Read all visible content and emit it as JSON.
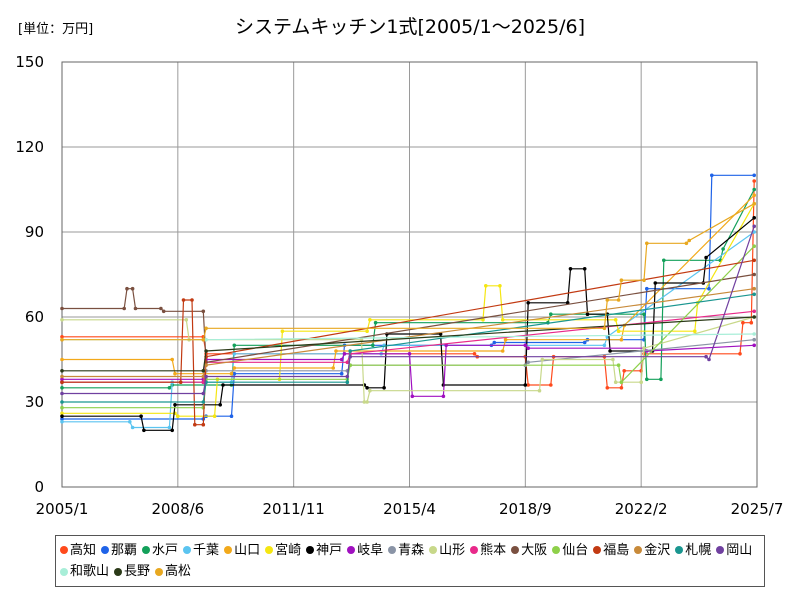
{
  "chart_data": {
    "type": "line",
    "unit_label": "[単位：万円]",
    "title": "システムキッチン1式[2005/1～2025/6]",
    "x_ticks": [
      "2005/1",
      "2008/6",
      "2011/11",
      "2015/4",
      "2018/9",
      "2022/2",
      "2025/7"
    ],
    "xlim": [
      "2005/1",
      "2025/7"
    ],
    "y_ticks": [
      0,
      30,
      60,
      90,
      120,
      150
    ],
    "ylim": [
      0,
      150
    ],
    "grid": true,
    "legend_position": "bottom",
    "series": [
      {
        "name": "高知",
        "color": "#ff4a1c",
        "x": [
          "2005/1",
          "2009/3",
          "2009/4",
          "2017/3",
          "2017/4",
          "2018/9",
          "2018/10",
          "2019/6",
          "2019/7",
          "2021/1",
          "2021/2",
          "2021/7",
          "2021/8",
          "2022/2",
          "2022/3",
          "2025/1",
          "2025/2",
          "2025/5",
          "2025/6"
        ],
        "y": [
          53,
          53,
          47,
          47,
          46,
          46,
          36,
          36,
          46,
          46,
          35,
          35,
          41,
          41,
          47,
          47,
          58,
          58,
          108
        ]
      },
      {
        "name": "那覇",
        "color": "#1f63e8",
        "x": [
          "2005/1",
          "2009/3",
          "2009/4",
          "2010/1",
          "2010/2",
          "2013/4",
          "2013/5",
          "2017/9",
          "2017/10",
          "2020/6",
          "2020/7",
          "2022/3",
          "2022/4",
          "2024/2",
          "2024/3",
          "2025/6"
        ],
        "y": [
          24,
          24,
          25,
          25,
          40,
          40,
          50,
          50,
          51,
          51,
          52,
          52,
          70,
          70,
          110,
          110
        ]
      },
      {
        "name": "水戸",
        "color": "#13a05a",
        "x": [
          "2005/1",
          "2008/3",
          "2008/4",
          "2010/1",
          "2010/2",
          "2014/3",
          "2014/4",
          "2019/5",
          "2019/6",
          "2022/3",
          "2022/4",
          "2022/9",
          "2022/10",
          "2024/6",
          "2024/7",
          "2025/6"
        ],
        "y": [
          35,
          35,
          36,
          36,
          50,
          50,
          58,
          58,
          61,
          61,
          38,
          38,
          80,
          80,
          84,
          105
        ]
      },
      {
        "name": "千葉",
        "color": "#5bc4f0",
        "x": [
          "2005/1",
          "2007/1",
          "2007/2",
          "2008/3",
          "2008/4",
          "2010/1",
          "2010/2",
          "2014/6",
          "2014/7",
          "2021/1",
          "2021/2",
          "2025/6"
        ],
        "y": [
          23,
          23,
          21,
          21,
          37,
          37,
          47,
          47,
          50,
          50,
          53,
          90
        ]
      },
      {
        "name": "山口",
        "color": "#f2a91b",
        "x": [
          "2005/1",
          "2008/4",
          "2008/5",
          "2010/1",
          "2010/2",
          "2013/1",
          "2013/2",
          "2018/1",
          "2018/2",
          "2021/7",
          "2021/8",
          "2025/6"
        ],
        "y": [
          45,
          45,
          40,
          40,
          42,
          42,
          48,
          48,
          52,
          52,
          57,
          103
        ]
      },
      {
        "name": "宮崎",
        "color": "#f5e612",
        "x": [
          "2005/1",
          "2008/5",
          "2008/6",
          "2009/7",
          "2009/8",
          "2011/6",
          "2011/7",
          "2014/1",
          "2014/2",
          "2017/6",
          "2017/7",
          "2017/12",
          "2018/1",
          "2021/5",
          "2021/6",
          "2023/9",
          "2023/10",
          "2025/6"
        ],
        "y": [
          26,
          26,
          25,
          25,
          38,
          38,
          55,
          55,
          59,
          59,
          71,
          71,
          59,
          59,
          55,
          55,
          65,
          100
        ]
      },
      {
        "name": "神戸",
        "color": "#000000",
        "x": [
          "2005/1",
          "2007/5",
          "2007/6",
          "2008/4",
          "2008/5",
          "2009/9",
          "2009/10",
          "2013/12",
          "2014/1",
          "2014/7",
          "2014/8",
          "2016/3",
          "2016/4",
          "2018/9",
          "2018/10",
          "2019/12",
          "2020/1",
          "2020/6",
          "2020/7",
          "2021/2",
          "2021/3",
          "2022/6",
          "2022/7",
          "2023/12",
          "2024/1",
          "2025/6"
        ],
        "y": [
          25,
          25,
          20,
          20,
          29,
          29,
          36,
          36,
          35,
          35,
          54,
          54,
          36,
          36,
          65,
          65,
          77,
          77,
          61,
          61,
          48,
          48,
          72,
          72,
          81,
          95
        ]
      },
      {
        "name": "岐阜",
        "color": "#a010c0",
        "x": [
          "2005/1",
          "2009/3",
          "2009/4",
          "2013/4",
          "2013/5",
          "2015/4",
          "2015/5",
          "2016/4",
          "2016/5",
          "2018/9",
          "2018/10",
          "2022/3",
          "2022/4",
          "2025/6"
        ],
        "y": [
          38,
          38,
          45,
          45,
          47,
          47,
          32,
          32,
          50,
          50,
          49,
          49,
          48,
          50
        ]
      },
      {
        "name": "青森",
        "color": "#8a94a6",
        "x": [
          "2005/1",
          "2009/3",
          "2009/4",
          "2013/6",
          "2013/7",
          "2018/9",
          "2018/10",
          "2025/6"
        ],
        "y": [
          37,
          37,
          41,
          41,
          43,
          43,
          44,
          52
        ]
      },
      {
        "name": "山形",
        "color": "#c8d88a",
        "x": [
          "2005/1",
          "2008/9",
          "2008/10",
          "2013/11",
          "2013/12",
          "2014/1",
          "2014/2",
          "2019/2",
          "2019/3",
          "2021/4",
          "2021/5",
          "2022/2",
          "2022/3",
          "2025/6"
        ],
        "y": [
          59,
          59,
          52,
          52,
          30,
          30,
          34,
          34,
          45,
          45,
          37,
          37,
          49,
          60
        ]
      },
      {
        "name": "熊本",
        "color": "#e8298a",
        "x": [
          "2005/1",
          "2009/3",
          "2009/4",
          "2013/6",
          "2013/7",
          "2025/6"
        ],
        "y": [
          37,
          37,
          44,
          44,
          47,
          62
        ]
      },
      {
        "name": "大阪",
        "color": "#7a5040",
        "x": [
          "2005/1",
          "2006/11",
          "2006/12",
          "2007/2",
          "2007/3",
          "2007/12",
          "2008/1",
          "2009/3",
          "2009/4",
          "2025/6"
        ],
        "y": [
          63,
          63,
          70,
          70,
          63,
          63,
          62,
          62,
          44,
          75
        ]
      },
      {
        "name": "仙台",
        "color": "#8ed04a",
        "x": [
          "2005/1",
          "2009/3",
          "2009/4",
          "2013/6",
          "2013/7",
          "2021/6",
          "2021/7",
          "2025/6"
        ],
        "y": [
          28,
          28,
          38,
          38,
          43,
          43,
          37,
          85
        ]
      },
      {
        "name": "福島",
        "color": "#c23a12",
        "x": [
          "2005/1",
          "2008/7",
          "2008/8",
          "2008/11",
          "2008/12",
          "2009/3",
          "2009/4",
          "2025/6"
        ],
        "y": [
          37,
          37,
          66,
          66,
          22,
          22,
          46,
          80
        ]
      },
      {
        "name": "金沢",
        "color": "#c88a3a",
        "x": [
          "2005/1",
          "2009/3",
          "2009/4",
          "2025/6"
        ],
        "y": [
          39,
          39,
          43,
          70
        ]
      },
      {
        "name": "札幌",
        "color": "#1a9690",
        "x": [
          "2005/1",
          "2009/3",
          "2009/4",
          "2013/6",
          "2013/7",
          "2025/6"
        ],
        "y": [
          30,
          30,
          37,
          37,
          48,
          68
        ]
      },
      {
        "name": "岡山",
        "color": "#7040a0",
        "x": [
          "2005/1",
          "2009/3",
          "2009/4",
          "2013/6",
          "2013/7",
          "2024/1",
          "2024/2",
          "2025/6"
        ],
        "y": [
          33,
          33,
          39,
          39,
          46,
          46,
          45,
          92
        ]
      },
      {
        "name": "和歌山",
        "color": "#a8eed8",
        "x": [
          "2005/1",
          "2009/3",
          "2009/4",
          "2025/6"
        ],
        "y": [
          52,
          52,
          52,
          54
        ]
      },
      {
        "name": "長野",
        "color": "#2b3a18",
        "x": [
          "2005/1",
          "2009/3",
          "2009/4",
          "2025/6"
        ],
        "y": [
          41,
          41,
          48,
          60
        ]
      },
      {
        "name": "高松",
        "color": "#e8a820",
        "x": [
          "2005/1",
          "2009/3",
          "2009/4",
          "2021/1",
          "2021/2",
          "2021/6",
          "2021/7",
          "2022/3",
          "2022/4",
          "2023/6",
          "2023/7",
          "2025/6"
        ],
        "y": [
          52,
          52,
          56,
          56,
          66,
          66,
          73,
          73,
          86,
          86,
          87,
          100
        ]
      }
    ]
  }
}
